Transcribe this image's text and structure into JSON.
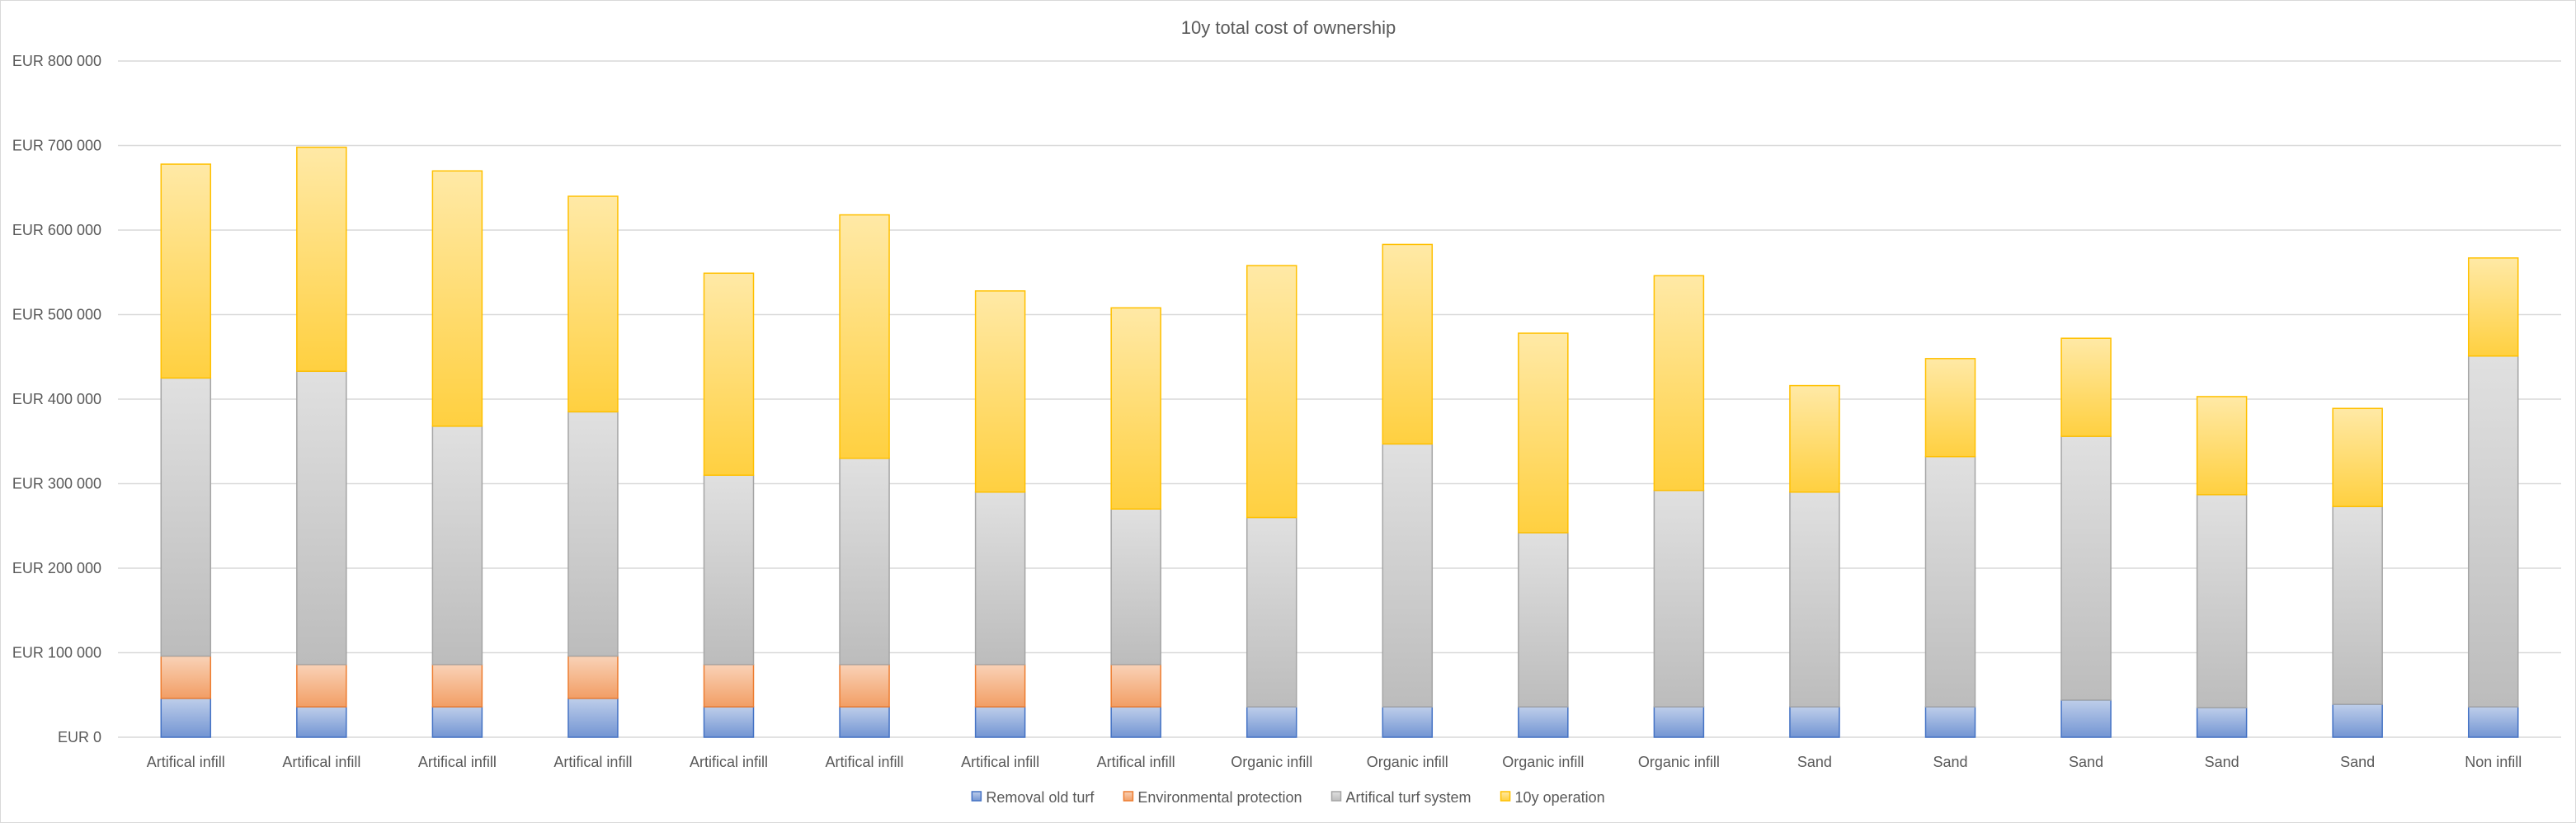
{
  "chart_data": {
    "type": "bar",
    "stacked": true,
    "title": "10y total cost of ownership",
    "xlabel": "",
    "ylabel": "",
    "ylim": [
      0,
      800000
    ],
    "yticks": [
      0,
      100000,
      200000,
      300000,
      400000,
      500000,
      600000,
      700000,
      800000
    ],
    "ytick_labels": [
      "EUR 0",
      "EUR 100 000",
      "EUR 200 000",
      "EUR 300 000",
      "EUR 400 000",
      "EUR 500 000",
      "EUR 600 000",
      "EUR 700 000",
      "EUR 800 000"
    ],
    "grid": true,
    "legend_position": "bottom",
    "categories": [
      "Artifical infill",
      "Artifical infill",
      "Artifical infill",
      "Artifical infill",
      "Artifical infill",
      "Artifical infill",
      "Artifical infill",
      "Artifical infill",
      "Organic infill",
      "Organic infill",
      "Organic infill",
      "Organic infill",
      "Sand",
      "Sand",
      "Sand",
      "Sand",
      "Sand",
      "Non infill"
    ],
    "series": [
      {
        "name": "Removal old turf",
        "color": "#4472c4",
        "values": [
          46000,
          36000,
          36000,
          46000,
          36000,
          36000,
          36000,
          36000,
          36000,
          36000,
          36000,
          36000,
          36000,
          36000,
          44000,
          35000,
          39000,
          36000
        ]
      },
      {
        "name": "Environmental protection",
        "color": "#ed7d31",
        "values": [
          50000,
          50000,
          50000,
          50000,
          50000,
          50000,
          50000,
          50000,
          0,
          0,
          0,
          0,
          0,
          0,
          0,
          0,
          0,
          0
        ]
      },
      {
        "name": "Artifical turf system",
        "color": "#a5a5a5",
        "values": [
          329000,
          347000,
          282000,
          289000,
          224000,
          244000,
          204000,
          184000,
          224000,
          311000,
          206000,
          256000,
          254000,
          296000,
          312000,
          252000,
          234000,
          415000
        ]
      },
      {
        "name": "10y operation",
        "color": "#ffc000",
        "values": [
          253000,
          265000,
          302000,
          255000,
          239000,
          288000,
          238000,
          238000,
          298000,
          236000,
          236000,
          254000,
          126000,
          116000,
          116000,
          116000,
          116000,
          116000
        ]
      }
    ]
  }
}
